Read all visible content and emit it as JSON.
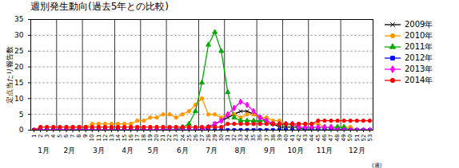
{
  "chart_data": {
    "type": "line",
    "title": "週別発生動向(過去5年との比較)",
    "y_label": "定点当たり報告数",
    "x_label": "(週)",
    "x": [
      1,
      2,
      3,
      4,
      5,
      6,
      7,
      8,
      9,
      10,
      11,
      12,
      13,
      14,
      15,
      16,
      17,
      18,
      19,
      20,
      21,
      22,
      23,
      24,
      25,
      26,
      27,
      28,
      29,
      30,
      31,
      32,
      33,
      34,
      35,
      36,
      37,
      38,
      39,
      40,
      41,
      42,
      43,
      44,
      45,
      46,
      47,
      48,
      49,
      50,
      51,
      52,
      53
    ],
    "xlim": [
      0.5,
      53.5
    ],
    "xticks": [
      1,
      2,
      3,
      4,
      5,
      6,
      7,
      8,
      9,
      10,
      11,
      12,
      13,
      14,
      15,
      16,
      17,
      18,
      19,
      20,
      21,
      22,
      23,
      24,
      25,
      26,
      27,
      28,
      29,
      30,
      31,
      32,
      33,
      34,
      35,
      36,
      37,
      38,
      39,
      40,
      41,
      42,
      43,
      44,
      45,
      46,
      47,
      48,
      49,
      50,
      51,
      52,
      53
    ],
    "ylim": [
      0,
      35
    ],
    "yticks": [
      0,
      5,
      10,
      15,
      20,
      25,
      30,
      35
    ],
    "grid": true,
    "legend": "upper right",
    "month_labels": [
      "1月",
      "2月",
      "3月",
      "4月",
      "5月",
      "6月",
      "7月",
      "8月",
      "9月",
      "10月",
      "11月",
      "12月"
    ],
    "month_starts": [
      1,
      5,
      9,
      14,
      18,
      22,
      27,
      31,
      36,
      40,
      44,
      49
    ],
    "series": [
      {
        "name": "2009年",
        "color": "#000000",
        "marker": "x",
        "values": [
          0,
          0,
          0,
          0,
          0,
          0,
          0,
          0,
          0,
          0,
          0,
          0,
          0,
          0,
          0,
          0,
          0,
          0,
          0,
          0,
          0,
          0,
          0,
          0,
          0,
          0,
          0,
          1,
          2,
          3,
          4,
          5,
          6,
          6,
          5,
          4,
          3,
          2,
          1,
          1,
          1,
          1,
          0,
          0,
          0,
          0,
          0,
          0,
          0,
          0,
          0,
          0,
          0
        ]
      },
      {
        "name": "2010年",
        "color": "#FF9900",
        "marker": "circle",
        "values": [
          0,
          0,
          0,
          0,
          0,
          0,
          1,
          1,
          1,
          2,
          2,
          2,
          2,
          2,
          2,
          2,
          3,
          3,
          4,
          4,
          5,
          5,
          4,
          5,
          6,
          8,
          10,
          5,
          5,
          4,
          5,
          5,
          4,
          5,
          5,
          4,
          4,
          3,
          3,
          2,
          2,
          2,
          2,
          2,
          2,
          1,
          1,
          1,
          1,
          1,
          0,
          0,
          0
        ]
      },
      {
        "name": "2011年",
        "color": "#00AA00",
        "marker": "triangle",
        "values": [
          0,
          0,
          0,
          0,
          0,
          0,
          0,
          0,
          0,
          0,
          0,
          0,
          0,
          0,
          0,
          0,
          0,
          0,
          0,
          0,
          0,
          0,
          0,
          1,
          2,
          6,
          15,
          27,
          31,
          25,
          12,
          4,
          3,
          3,
          3,
          3,
          3,
          2,
          2,
          2,
          2,
          1,
          1,
          1,
          1,
          1,
          1,
          1,
          1,
          0,
          0,
          0,
          0
        ]
      },
      {
        "name": "2012年",
        "color": "#0000FF",
        "marker": "square",
        "values": [
          0,
          0,
          0,
          0,
          0,
          0,
          0,
          0,
          0,
          0,
          0,
          0,
          0,
          0,
          0,
          0,
          0,
          0,
          0,
          0,
          0,
          0,
          0,
          0,
          0,
          0,
          0,
          0,
          0,
          0,
          0,
          0,
          0,
          0,
          0,
          0,
          0,
          0,
          0,
          0,
          0,
          0,
          0,
          0,
          0,
          0,
          0,
          0,
          0,
          0,
          0,
          0,
          0
        ]
      },
      {
        "name": "2013年",
        "color": "#FF00FF",
        "marker": "diamond",
        "values": [
          0,
          0,
          0,
          0,
          0,
          0,
          0,
          0,
          0,
          0,
          0,
          0,
          0,
          0,
          0,
          0,
          0,
          0,
          0,
          0,
          0,
          0,
          0,
          0,
          0,
          0,
          0,
          1,
          2,
          3,
          5,
          7,
          9,
          8,
          6,
          4,
          3,
          2,
          2,
          2,
          2,
          1,
          1,
          1,
          1,
          1,
          1,
          0,
          0,
          0,
          0,
          0,
          0
        ]
      },
      {
        "name": "2014年",
        "color": "#FF0000",
        "marker": "circle",
        "values": [
          0,
          1,
          1,
          1,
          1,
          1,
          1,
          1,
          1,
          1,
          1,
          1,
          1,
          1,
          1,
          1,
          1,
          1,
          1,
          1,
          1,
          1,
          1,
          1,
          1,
          1,
          1,
          1,
          1,
          1,
          2,
          2,
          2,
          2,
          2,
          2,
          2,
          2,
          2,
          2,
          2,
          2,
          2,
          2,
          3,
          3,
          3,
          3,
          3,
          3,
          3,
          3,
          3
        ]
      }
    ]
  }
}
